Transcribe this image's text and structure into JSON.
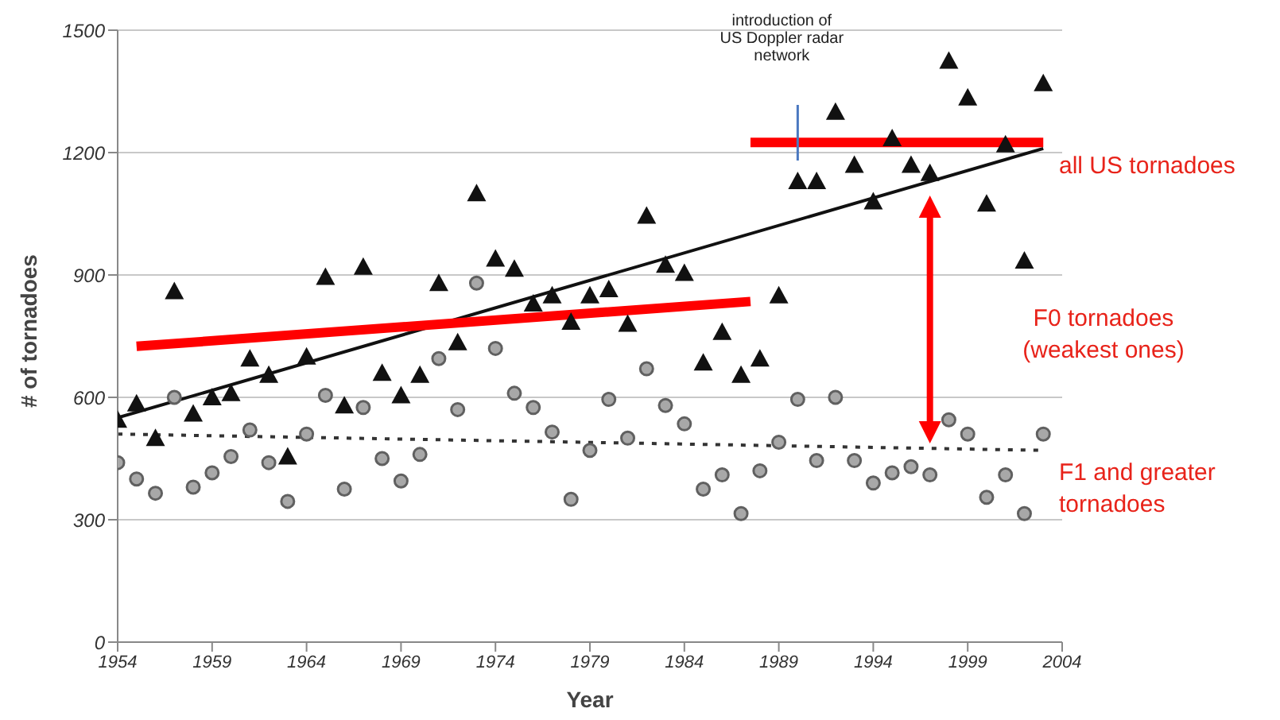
{
  "chart_data": {
    "type": "scatter",
    "xlabel": "Year",
    "ylabel": "# of tornadoes",
    "xlim": [
      1954,
      2004
    ],
    "xticks": [
      1954,
      1959,
      1964,
      1969,
      1974,
      1979,
      1984,
      1989,
      1994,
      1999,
      2004
    ],
    "ylim": [
      0,
      1500
    ],
    "yticks": [
      0,
      300,
      600,
      900,
      1200,
      1500
    ],
    "grid": "y",
    "legend": false,
    "series": [
      {
        "marker": "circle",
        "color": "#a8a8a8",
        "x": [
          1954,
          1955,
          1956,
          1957,
          1958,
          1959,
          1960,
          1961,
          1962,
          1963,
          1964,
          1965,
          1966,
          1967,
          1968,
          1969,
          1970,
          1971,
          1972,
          1973,
          1974,
          1975,
          1976,
          1977,
          1978,
          1979,
          1980,
          1981,
          1982,
          1983,
          1984,
          1985,
          1986,
          1987,
          1988,
          1989,
          1990,
          1991,
          1992,
          1993,
          1994,
          1995,
          1996,
          1997,
          1998,
          1999,
          2000,
          2001,
          2002,
          2003
        ],
        "values": [
          440,
          400,
          365,
          600,
          380,
          415,
          455,
          520,
          440,
          345,
          510,
          605,
          375,
          575,
          450,
          395,
          460,
          695,
          570,
          880,
          720,
          610,
          575,
          515,
          350,
          470,
          595,
          500,
          670,
          580,
          535,
          375,
          410,
          315,
          420,
          490,
          595,
          445,
          600,
          445,
          390,
          415,
          430,
          410,
          545,
          510,
          355,
          410,
          315,
          510
        ]
      },
      {
        "marker": "triangle",
        "color": "#111111",
        "x": [
          1954,
          1955,
          1956,
          1957,
          1958,
          1959,
          1960,
          1961,
          1962,
          1963,
          1964,
          1965,
          1966,
          1967,
          1968,
          1969,
          1970,
          1971,
          1972,
          1973,
          1974,
          1975,
          1976,
          1977,
          1978,
          1979,
          1980,
          1981,
          1982,
          1983,
          1984,
          1985,
          1986,
          1987,
          1988,
          1989,
          1990,
          1991,
          1992,
          1993,
          1994,
          1995,
          1996,
          1997,
          1998,
          1999,
          2000,
          2001,
          2002,
          2003
        ],
        "values": [
          545,
          585,
          500,
          860,
          560,
          600,
          610,
          695,
          655,
          455,
          700,
          895,
          580,
          920,
          660,
          605,
          655,
          880,
          735,
          1100,
          940,
          915,
          830,
          850,
          785,
          850,
          865,
          780,
          1045,
          925,
          905,
          685,
          760,
          655,
          695,
          850,
          1130,
          1130,
          1300,
          1170,
          1080,
          1235,
          1170,
          1150,
          1425,
          1335,
          1075,
          1220,
          935,
          1370
        ]
      },
      {
        "type": "line",
        "line_style": "dotted",
        "color": "#333333",
        "x": [
          1954,
          2003
        ],
        "values": [
          510,
          470
        ]
      },
      {
        "type": "line",
        "line_style": "solid",
        "color": "#111111",
        "x": [
          1954,
          2003
        ],
        "values": [
          550,
          1210
        ]
      },
      {
        "type": "line",
        "line_style": "solid",
        "color": "#ff0000",
        "x": [
          1955,
          1987.5
        ],
        "values": [
          725,
          835
        ]
      },
      {
        "type": "line",
        "line_style": "solid",
        "color": "#ff0000",
        "x": [
          1987.5,
          2003
        ],
        "values": [
          1225,
          1225
        ]
      }
    ],
    "annotations": [
      "introduction of\nUS Doppler radar\nnetwork",
      "all US tornadoes",
      "F0 tornadoes\n(weakest ones)",
      "F1 and greater\ntornadoes"
    ]
  }
}
